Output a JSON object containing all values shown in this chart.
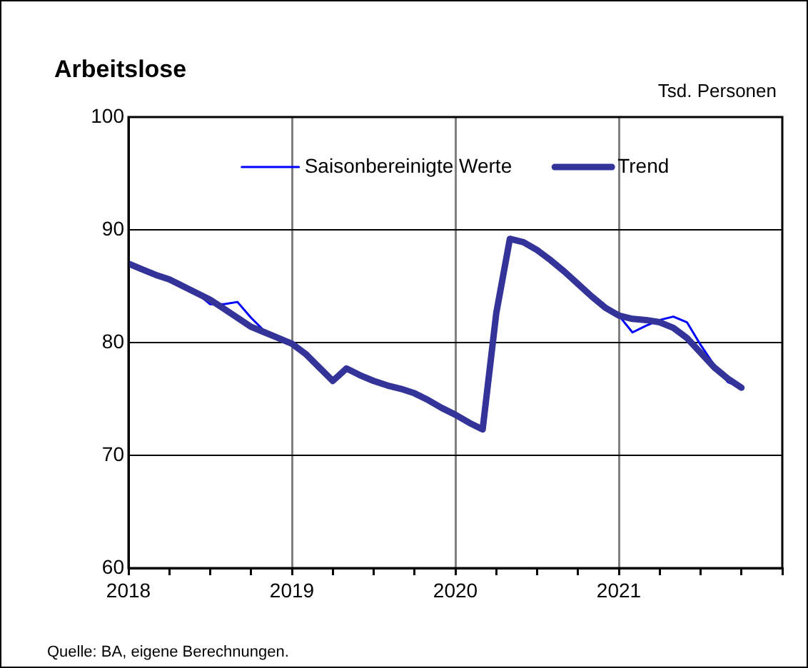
{
  "chart_data": {
    "type": "line",
    "title": "Arbeitslose",
    "ylabel": "Tsd. Personen",
    "annotations": [
      "Quelle: BA, eigene Berechnungen."
    ],
    "x": [
      "2018-01",
      "2018-02",
      "2018-03",
      "2018-04",
      "2018-05",
      "2018-06",
      "2018-07",
      "2018-08",
      "2018-09",
      "2018-10",
      "2018-11",
      "2018-12",
      "2019-01",
      "2019-02",
      "2019-03",
      "2019-04",
      "2019-05",
      "2019-06",
      "2019-07",
      "2019-08",
      "2019-09",
      "2019-10",
      "2019-11",
      "2019-12",
      "2020-01",
      "2020-02",
      "2020-03",
      "2020-04",
      "2020-05",
      "2020-06",
      "2020-07",
      "2020-08",
      "2020-09",
      "2020-10",
      "2020-11",
      "2020-12",
      "2021-01",
      "2021-02",
      "2021-03",
      "2021-04",
      "2021-05",
      "2021-06",
      "2021-07",
      "2021-08",
      "2021-09",
      "2021-10"
    ],
    "series": [
      {
        "name": "Saisonbereinigte Werte",
        "color": "#0000ff",
        "values": [
          null,
          null,
          null,
          null,
          null,
          84.4,
          83.4,
          83.4,
          83.6,
          82.2,
          81.0,
          null,
          null,
          null,
          null,
          null,
          null,
          null,
          null,
          null,
          null,
          null,
          null,
          null,
          null,
          null,
          null,
          null,
          null,
          null,
          null,
          null,
          null,
          null,
          null,
          83.1,
          82.4,
          80.9,
          81.5,
          82.0,
          82.3,
          81.8,
          79.8,
          78.0,
          76.5,
          76.0
        ]
      },
      {
        "name": "Trend",
        "color": "#333399",
        "values": [
          87.0,
          86.5,
          86.0,
          85.6,
          85.0,
          84.4,
          83.8,
          83.0,
          82.2,
          81.4,
          80.9,
          80.4,
          79.9,
          79.0,
          77.8,
          76.6,
          77.7,
          77.1,
          76.6,
          76.2,
          75.9,
          75.5,
          74.9,
          74.2,
          73.6,
          72.9,
          72.3,
          82.6,
          89.2,
          88.9,
          88.2,
          87.3,
          86.3,
          85.2,
          84.1,
          83.1,
          82.4,
          82.1,
          82.0,
          81.8,
          81.3,
          80.4,
          79.1,
          77.8,
          76.8,
          76.0
        ]
      }
    ],
    "xlim": [
      "2018-01",
      "2022-01"
    ],
    "xticks": [
      {
        "value": "2018-01",
        "label": "2018"
      },
      {
        "value": "2018-04",
        "label": null
      },
      {
        "value": "2018-07",
        "label": null
      },
      {
        "value": "2018-10",
        "label": null
      },
      {
        "value": "2019-01",
        "label": "2019"
      },
      {
        "value": "2019-04",
        "label": null
      },
      {
        "value": "2019-07",
        "label": null
      },
      {
        "value": "2019-10",
        "label": null
      },
      {
        "value": "2020-01",
        "label": "2020"
      },
      {
        "value": "2020-04",
        "label": null
      },
      {
        "value": "2020-07",
        "label": null
      },
      {
        "value": "2020-10",
        "label": null
      },
      {
        "value": "2021-01",
        "label": "2021"
      },
      {
        "value": "2021-04",
        "label": null
      },
      {
        "value": "2021-07",
        "label": null
      },
      {
        "value": "2021-10",
        "label": null
      },
      {
        "value": "2022-01",
        "label": null
      }
    ],
    "ylim": [
      60,
      100
    ],
    "yticks": [
      60,
      70,
      80,
      90,
      100
    ],
    "grid": true,
    "legend": "top",
    "marker": "none",
    "line_style": "solid"
  }
}
